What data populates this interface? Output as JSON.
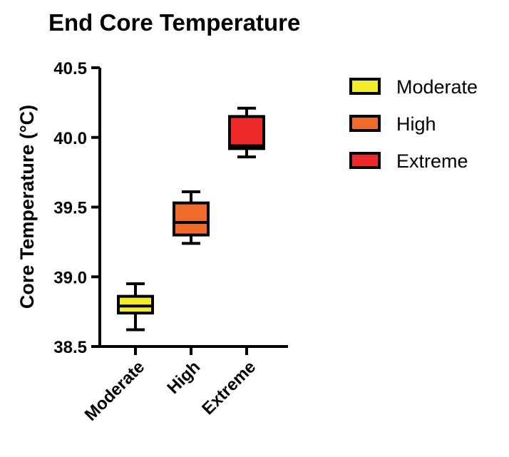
{
  "chart_data": {
    "type": "box",
    "title": "End Core Temperature",
    "xlabel": "",
    "ylabel": "Core Temperature (°C)",
    "ylim": [
      38.5,
      40.5
    ],
    "yticks": [
      "38.5",
      "39.0",
      "39.5",
      "40.0",
      "40.5"
    ],
    "yticks_values": [
      38.5,
      39.0,
      39.5,
      40.0,
      40.5
    ],
    "grid": false,
    "legend_position": "top-right",
    "categories": [
      "Moderate",
      "High",
      "Extreme"
    ],
    "series": [
      {
        "name": "Moderate",
        "color": "#f2ec2a",
        "min": 38.62,
        "q1": 38.74,
        "median": 38.79,
        "q3": 38.86,
        "max": 38.95
      },
      {
        "name": "High",
        "color": "#f06a2a",
        "min": 39.24,
        "q1": 39.3,
        "median": 39.39,
        "q3": 39.53,
        "max": 39.61
      },
      {
        "name": "Extreme",
        "color": "#ee2a2a",
        "min": 39.86,
        "q1": 39.92,
        "median": 39.94,
        "q3": 40.15,
        "max": 40.21
      }
    ]
  }
}
